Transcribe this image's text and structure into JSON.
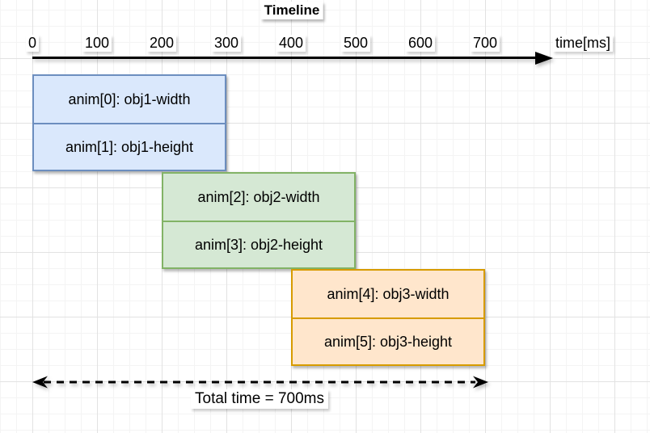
{
  "title": "Timeline",
  "axis": {
    "tick_labels": [
      "0",
      "100",
      "200",
      "300",
      "400",
      "500",
      "600",
      "700"
    ],
    "tick_step_ms": 100,
    "unit_label": "time[ms]"
  },
  "colors": {
    "blue_fill": "#dae8fc",
    "blue_stroke": "#6c8ebf",
    "green_fill": "#d5e8d4",
    "green_stroke": "#82b366",
    "orange_fill": "#ffe6cc",
    "orange_stroke": "#d79b00",
    "axis_color": "#000000"
  },
  "groups": [
    {
      "start_ms": 0,
      "end_ms": 300,
      "fill": "#dae8fc",
      "stroke": "#6c8ebf",
      "bars": [
        {
          "label": "anim[0]: obj1-width"
        },
        {
          "label": "anim[1]: obj1-height"
        }
      ]
    },
    {
      "start_ms": 200,
      "end_ms": 500,
      "fill": "#d5e8d4",
      "stroke": "#82b366",
      "bars": [
        {
          "label": "anim[2]: obj2-width"
        },
        {
          "label": "anim[3]: obj2-height"
        }
      ]
    },
    {
      "start_ms": 400,
      "end_ms": 700,
      "fill": "#ffe6cc",
      "stroke": "#d79b00",
      "bars": [
        {
          "label": "anim[4]: obj3-width"
        },
        {
          "label": "anim[5]: obj3-height"
        }
      ]
    }
  ],
  "total_span": {
    "label": "Total time = 700ms",
    "start_ms": 0,
    "end_ms": 700
  },
  "chart_data": {
    "type": "gantt-timeline",
    "title": "Timeline",
    "xlabel": "time[ms]",
    "xlim": [
      0,
      700
    ],
    "x_ticks": [
      0,
      100,
      200,
      300,
      400,
      500,
      600,
      700
    ],
    "series": [
      {
        "name": "anim[0]: obj1-width",
        "start": 0,
        "end": 300
      },
      {
        "name": "anim[1]: obj1-height",
        "start": 0,
        "end": 300
      },
      {
        "name": "anim[2]: obj2-width",
        "start": 200,
        "end": 500
      },
      {
        "name": "anim[3]: obj2-height",
        "start": 200,
        "end": 500
      },
      {
        "name": "anim[4]: obj3-width",
        "start": 400,
        "end": 700
      },
      {
        "name": "anim[5]: obj3-height",
        "start": 400,
        "end": 700
      }
    ],
    "annotations": [
      "Total time = 700ms"
    ]
  }
}
